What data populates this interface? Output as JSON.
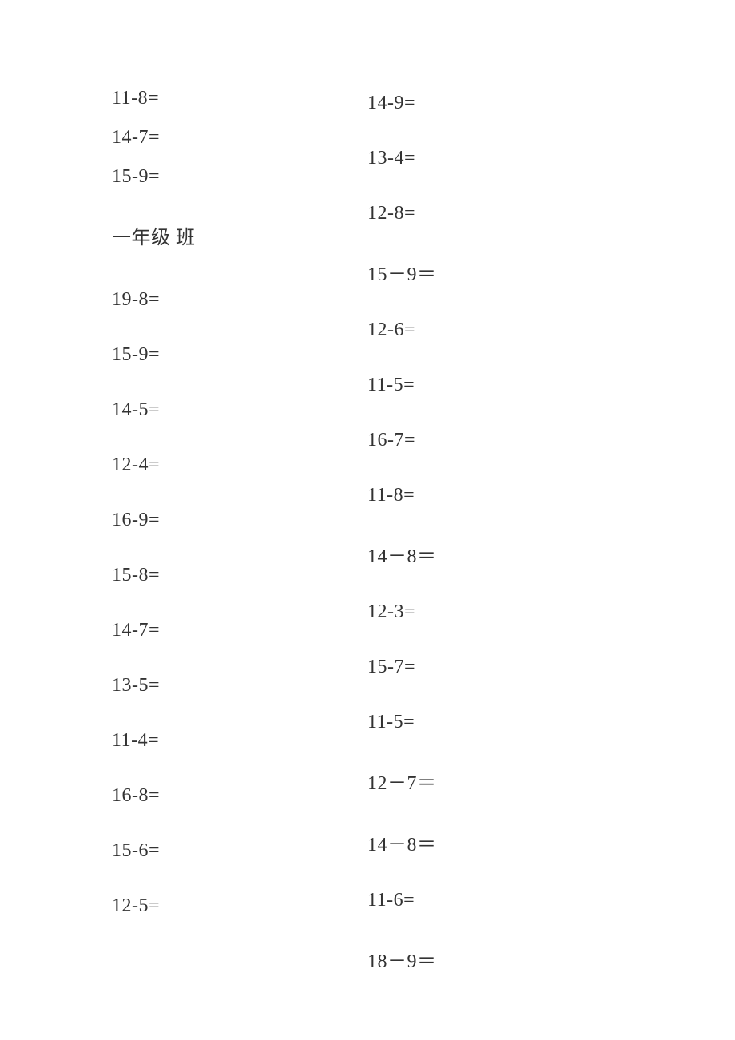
{
  "style": {
    "background_color": "#ffffff",
    "text_color": "#333333",
    "font_family": "SimSun, 宋体, serif",
    "font_size_pt": 18
  },
  "left_column": [
    "11-8=",
    "14-7=",
    "15-9=",
    "一年级 班",
    "19-8=",
    "15-9=",
    "14-5=",
    "12-4=",
    "16-9=",
    "15-8=",
    "14-7=",
    "13-5=",
    "11-4=",
    "16-8=",
    "15-6=",
    "12-5="
  ],
  "right_column": [
    "14-9=",
    "13-4=",
    "12-8=",
    "15－9＝",
    "12-6=",
    "11-5=",
    "16-7=",
    "11-8=",
    "14－8＝",
    "12-3=",
    "15-7=",
    "11-5=",
    "12－7＝",
    "14－8＝",
    "11-6=",
    "18－9＝"
  ]
}
